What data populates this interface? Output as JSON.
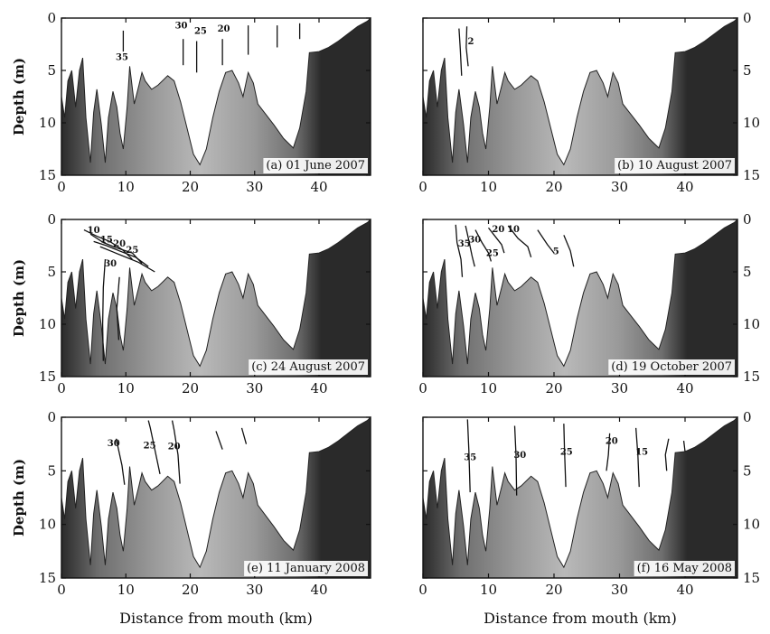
{
  "colors": {
    "background": "#ffffff",
    "water": "#ffffff",
    "land_gradient": [
      "#2a2a2a",
      "#6e6e6e",
      "#9a9a9a",
      "#b9b9b9",
      "#9a9a9a",
      "#6e6e6e",
      "#2a2a2a"
    ],
    "contour": "#111111"
  },
  "chart_data": [
    {
      "type": "area",
      "panel_label": "(a) 01 June 2007",
      "ylabel": "Depth (m)",
      "xlabel": "",
      "xlim": [
        0,
        48
      ],
      "ylim": [
        15,
        0
      ],
      "xticks": [
        "0",
        "10",
        "20",
        "30",
        "40"
      ],
      "yticks": [
        "0",
        "5",
        "10",
        "15"
      ],
      "y_axis_side": "left",
      "contours": [
        {
          "points": [
            [
              9.6,
              1.2
            ],
            [
              9.6,
              3.2
            ]
          ],
          "label": "35",
          "label_at": [
            9.4,
            4.0
          ]
        },
        {
          "points": [
            [
              18.9,
              2.0
            ],
            [
              18.9,
              4.5
            ]
          ],
          "label": "30",
          "label_at": [
            18.6,
            1.0
          ]
        },
        {
          "points": [
            [
              21.0,
              2.2
            ],
            [
              21.0,
              5.2
            ]
          ],
          "label": "25",
          "label_at": [
            21.6,
            1.5
          ]
        },
        {
          "points": [
            [
              25.0,
              2.0
            ],
            [
              25.0,
              4.5
            ]
          ],
          "label": "20",
          "label_at": [
            25.2,
            1.3
          ]
        },
        {
          "points": [
            [
              29.0,
              0.7
            ],
            [
              29.0,
              3.5
            ]
          ]
        },
        {
          "points": [
            [
              33.5,
              0.7
            ],
            [
              33.5,
              2.8
            ]
          ]
        },
        {
          "points": [
            [
              37.0,
              0.5
            ],
            [
              37.0,
              2.0
            ]
          ]
        }
      ]
    },
    {
      "type": "area",
      "panel_label": "(b) 10 August 2007",
      "ylabel": "",
      "xlabel": "",
      "xlim": [
        0,
        48
      ],
      "ylim": [
        15,
        0
      ],
      "xticks": [
        "0",
        "10",
        "20",
        "30",
        "40"
      ],
      "yticks": [
        "0",
        "5",
        "10",
        "15"
      ],
      "y_axis_side": "right",
      "contours": [
        {
          "points": [
            [
              5.5,
              1.0
            ],
            [
              5.7,
              3.0
            ],
            [
              5.9,
              5.5
            ]
          ]
        },
        {
          "points": [
            [
              6.7,
              0.8
            ],
            [
              6.6,
              2.8
            ],
            [
              6.9,
              4.6
            ]
          ],
          "label": "2",
          "label_at": [
            7.3,
            2.5
          ]
        }
      ]
    },
    {
      "type": "area",
      "panel_label": "(c) 24 August 2007",
      "ylabel": "Depth (m)",
      "xlabel": "",
      "xlim": [
        0,
        48
      ],
      "ylim": [
        15,
        0
      ],
      "xticks": [
        "0",
        "10",
        "20",
        "30",
        "40"
      ],
      "yticks": [
        "0",
        "5",
        "10",
        "15"
      ],
      "y_axis_side": "left",
      "contours": [
        {
          "points": [
            [
              3.5,
              1.0
            ],
            [
              5.5,
              1.6
            ],
            [
              7.5,
              2.1
            ],
            [
              9.5,
              2.9
            ],
            [
              11.0,
              3.8
            ]
          ],
          "label": "10",
          "label_at": [
            5.0,
            1.3
          ]
        },
        {
          "points": [
            [
              4.5,
              1.4
            ],
            [
              6.5,
              2.2
            ],
            [
              8.5,
              2.7
            ],
            [
              11.0,
              3.2
            ],
            [
              12.5,
              4.2
            ]
          ],
          "label": "15",
          "label_at": [
            7.0,
            2.2
          ]
        },
        {
          "points": [
            [
              5.0,
              2.1
            ],
            [
              7.0,
              2.5
            ],
            [
              9.0,
              3.0
            ],
            [
              11.5,
              3.6
            ],
            [
              13.5,
              4.5
            ]
          ],
          "label": "20",
          "label_at": [
            9.0,
            2.6
          ]
        },
        {
          "points": [
            [
              6.0,
              2.6
            ],
            [
              8.0,
              3.1
            ],
            [
              10.0,
              3.6
            ],
            [
              12.0,
              4.1
            ],
            [
              14.5,
              5.0
            ]
          ],
          "label": "25",
          "label_at": [
            11.0,
            3.2
          ]
        },
        {
          "points": [
            [
              6.8,
              3.8
            ],
            [
              6.5,
              6.5
            ],
            [
              6.4,
              10.0
            ],
            [
              6.5,
              13.5
            ]
          ],
          "label": "30",
          "label_at": [
            7.6,
            4.5
          ]
        },
        {
          "points": [
            [
              9.0,
              5.5
            ],
            [
              8.6,
              8.5
            ],
            [
              8.9,
              11.5
            ]
          ]
        }
      ]
    },
    {
      "type": "area",
      "panel_label": "(d) 19 October 2007",
      "ylabel": "",
      "xlabel": "",
      "xlim": [
        0,
        48
      ],
      "ylim": [
        15,
        0
      ],
      "xticks": [
        "0",
        "10",
        "20",
        "30",
        "40"
      ],
      "yticks": [
        "0",
        "5",
        "10",
        "15"
      ],
      "y_axis_side": "right",
      "contours": [
        {
          "points": [
            [
              5.0,
              0.5
            ],
            [
              5.2,
              2.2
            ],
            [
              5.8,
              3.8
            ],
            [
              6.0,
              5.5
            ]
          ],
          "label": "35",
          "label_at": [
            6.3,
            2.6
          ]
        },
        {
          "points": [
            [
              6.5,
              0.6
            ],
            [
              7.0,
              2.0
            ],
            [
              7.5,
              3.5
            ],
            [
              7.9,
              4.5
            ]
          ],
          "label": "30",
          "label_at": [
            7.9,
            2.2
          ]
        },
        {
          "points": [
            [
              8.0,
              1.0
            ],
            [
              9.0,
              2.2
            ],
            [
              10.0,
              3.2
            ],
            [
              10.4,
              4.0
            ]
          ],
          "label": "25",
          "label_at": [
            10.6,
            3.5
          ]
        },
        {
          "points": [
            [
              10.0,
              0.8
            ],
            [
              11.0,
              1.6
            ],
            [
              12.0,
              2.4
            ],
            [
              12.4,
              3.2
            ]
          ],
          "label": "20",
          "label_at": [
            11.5,
            1.2
          ]
        },
        {
          "points": [
            [
              13.0,
              0.6
            ],
            [
              14.5,
              1.8
            ],
            [
              16.0,
              2.6
            ],
            [
              16.5,
              3.6
            ]
          ],
          "label": "10",
          "label_at": [
            13.8,
            1.2
          ]
        },
        {
          "points": [
            [
              17.5,
              1.0
            ],
            [
              19.0,
              2.4
            ],
            [
              20.0,
              3.2
            ]
          ],
          "label": "5",
          "label_at": [
            20.3,
            3.3
          ]
        },
        {
          "points": [
            [
              21.5,
              1.5
            ],
            [
              22.5,
              3.0
            ],
            [
              23.0,
              4.5
            ]
          ]
        }
      ]
    },
    {
      "type": "area",
      "panel_label": "(e) 11 January 2008",
      "ylabel": "Depth (m)",
      "xlabel": "Distance from mouth (km)",
      "xlim": [
        0,
        48
      ],
      "ylim": [
        15,
        0
      ],
      "xticks": [
        "0",
        "10",
        "20",
        "30",
        "40"
      ],
      "yticks": [
        "0",
        "5",
        "10",
        "15"
      ],
      "y_axis_side": "left",
      "contours": [
        {
          "points": [
            [
              8.5,
              2.0
            ],
            [
              9.4,
              4.5
            ],
            [
              9.8,
              6.3
            ]
          ],
          "label": "30",
          "label_at": [
            8.1,
            2.7
          ]
        },
        {
          "points": [
            [
              13.5,
              0.3
            ],
            [
              13.8,
              1.0
            ],
            [
              14.5,
              3.0
            ],
            [
              15.3,
              5.3
            ]
          ],
          "label": "25",
          "label_at": [
            13.7,
            2.9
          ]
        },
        {
          "points": [
            [
              17.2,
              0.3
            ],
            [
              17.5,
              1.2
            ],
            [
              18.1,
              3.5
            ],
            [
              18.4,
              6.2
            ]
          ],
          "label": "20",
          "label_at": [
            17.5,
            3.0
          ]
        },
        {
          "points": [
            [
              24.0,
              1.3
            ],
            [
              25.0,
              3.0
            ]
          ]
        },
        {
          "points": [
            [
              28.0,
              1.0
            ],
            [
              28.7,
              2.5
            ]
          ]
        }
      ]
    },
    {
      "type": "area",
      "panel_label": "(f) 16 May 2008",
      "ylabel": "",
      "xlabel": "Distance from mouth (km)",
      "xlim": [
        0,
        48
      ],
      "ylim": [
        15,
        0
      ],
      "xticks": [
        "0",
        "10",
        "20",
        "30",
        "40"
      ],
      "yticks": [
        "0",
        "5",
        "10",
        "15"
      ],
      "y_axis_side": "right",
      "contours": [
        {
          "points": [
            [
              6.8,
              0.2
            ],
            [
              7.0,
              3.0
            ],
            [
              7.2,
              7.0
            ]
          ],
          "label": "35",
          "label_at": [
            7.2,
            4.0
          ]
        },
        {
          "points": [
            [
              14.0,
              0.8
            ],
            [
              14.2,
              3.5
            ],
            [
              14.3,
              7.3
            ]
          ],
          "label": "30",
          "label_at": [
            14.8,
            3.8
          ]
        },
        {
          "points": [
            [
              21.5,
              0.6
            ],
            [
              21.6,
              3.0
            ],
            [
              21.8,
              6.5
            ]
          ],
          "label": "25",
          "label_at": [
            21.9,
            3.5
          ]
        },
        {
          "points": [
            [
              28.5,
              1.5
            ],
            [
              28.3,
              3.5
            ],
            [
              28.0,
              5.0
            ]
          ],
          "label": "20",
          "label_at": [
            28.8,
            2.5
          ]
        },
        {
          "points": [
            [
              32.5,
              1.0
            ],
            [
              32.8,
              3.5
            ],
            [
              33.0,
              6.5
            ]
          ],
          "label": "15",
          "label_at": [
            33.4,
            3.5
          ]
        },
        {
          "points": [
            [
              37.5,
              2.0
            ],
            [
              37.0,
              3.5
            ],
            [
              37.2,
              5.0
            ]
          ]
        },
        {
          "points": [
            [
              39.8,
              2.2
            ],
            [
              40.0,
              3.2
            ]
          ]
        }
      ]
    }
  ],
  "bathymetry_profile": [
    [
      0.0,
      7.5
    ],
    [
      0.5,
      9.5
    ],
    [
      1.0,
      6.0
    ],
    [
      1.6,
      5.0
    ],
    [
      2.2,
      8.5
    ],
    [
      2.8,
      5.0
    ],
    [
      3.3,
      3.8
    ],
    [
      3.8,
      9.5
    ],
    [
      4.5,
      13.8
    ],
    [
      5.0,
      9.0
    ],
    [
      5.5,
      6.8
    ],
    [
      6.2,
      10.2
    ],
    [
      6.8,
      13.8
    ],
    [
      7.3,
      9.5
    ],
    [
      8.0,
      7.0
    ],
    [
      8.6,
      8.5
    ],
    [
      9.1,
      11.0
    ],
    [
      9.6,
      12.5
    ],
    [
      10.2,
      8.5
    ],
    [
      10.6,
      4.6
    ],
    [
      11.3,
      8.2
    ],
    [
      12.0,
      6.5
    ],
    [
      12.5,
      5.2
    ],
    [
      13.0,
      6.0
    ],
    [
      14.0,
      6.8
    ],
    [
      15.0,
      6.4
    ],
    [
      16.5,
      5.5
    ],
    [
      17.5,
      6.0
    ],
    [
      18.5,
      8.0
    ],
    [
      19.5,
      10.5
    ],
    [
      20.5,
      13.0
    ],
    [
      21.5,
      14.0
    ],
    [
      22.5,
      12.5
    ],
    [
      23.5,
      9.5
    ],
    [
      24.5,
      7.0
    ],
    [
      25.5,
      5.2
    ],
    [
      26.5,
      5.0
    ],
    [
      27.5,
      6.2
    ],
    [
      28.2,
      7.5
    ],
    [
      29.0,
      5.2
    ],
    [
      29.8,
      6.2
    ],
    [
      30.5,
      8.2
    ],
    [
      31.5,
      9.0
    ],
    [
      33.0,
      10.2
    ],
    [
      34.5,
      11.5
    ],
    [
      36.0,
      12.4
    ],
    [
      37.0,
      10.5
    ],
    [
      38.0,
      7.0
    ],
    [
      38.5,
      3.3
    ],
    [
      40.0,
      3.2
    ],
    [
      41.5,
      2.8
    ],
    [
      43.0,
      2.2
    ],
    [
      44.5,
      1.5
    ],
    [
      46.0,
      0.8
    ],
    [
      47.5,
      0.3
    ],
    [
      48.0,
      0.0
    ]
  ]
}
